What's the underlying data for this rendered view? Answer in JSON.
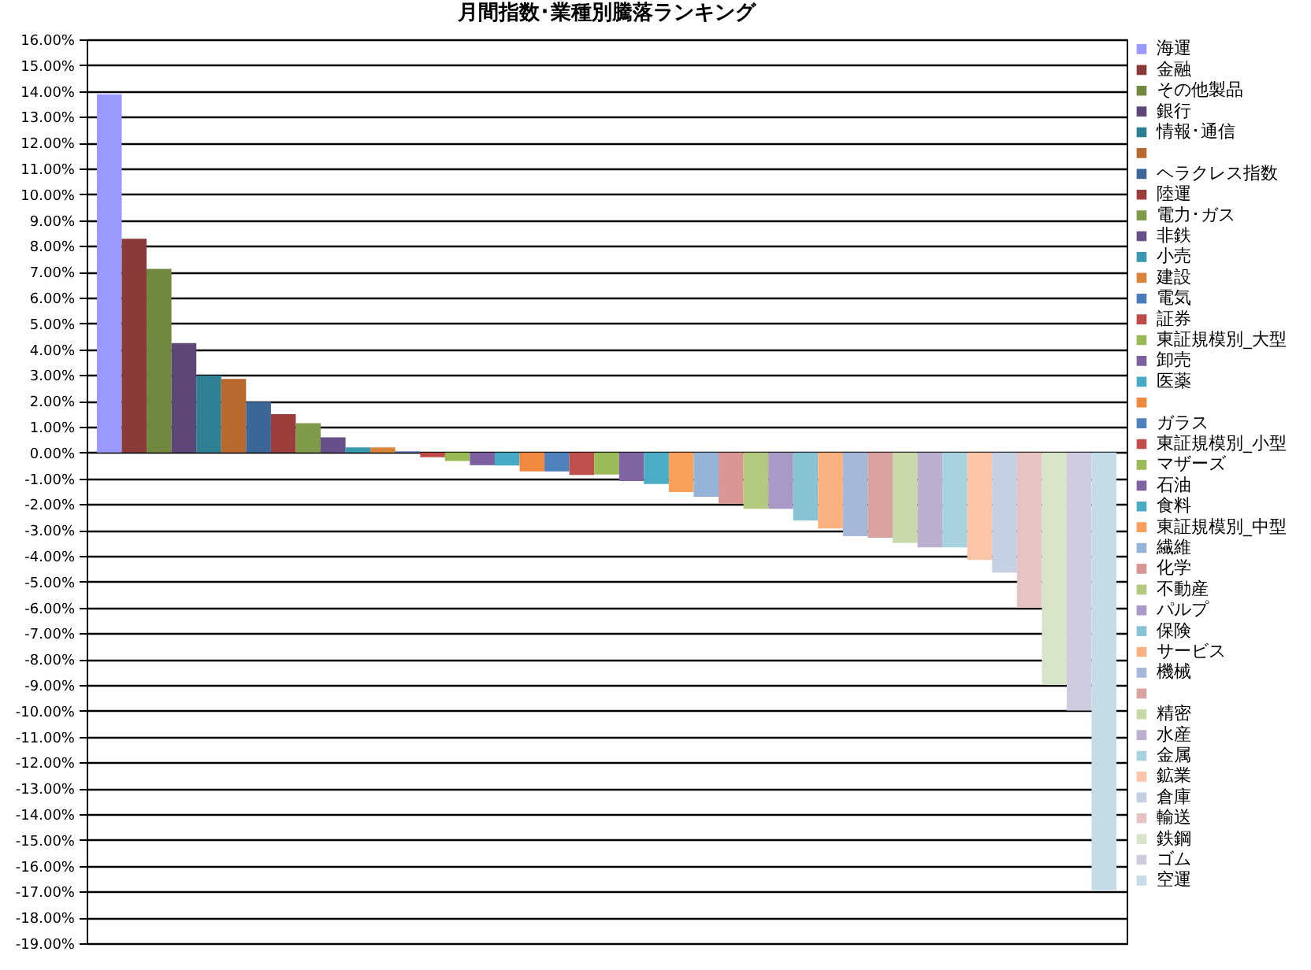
{
  "chart_data": {
    "type": "bar",
    "title": "月間指数･業種別騰落ランキング",
    "categories": [
      null
    ],
    "series": [
      {
        "name": "海運",
        "color": "#9999ff",
        "values": [
          13.87
        ]
      },
      {
        "name": "金融",
        "color": "#8b3a3a",
        "values": [
          8.28
        ]
      },
      {
        "name": "その他製品",
        "color": "#71893f",
        "values": [
          7.11
        ]
      },
      {
        "name": "銀行",
        "color": "#5c4776",
        "values": [
          4.24
        ]
      },
      {
        "name": "情報･通信",
        "color": "#2f7f93",
        "values": [
          2.98
        ]
      },
      {
        "name": null,
        "color": "#b8692e",
        "values": [
          2.85
        ]
      },
      {
        "name": "ヘラクレス指数",
        "color": "#3c6698",
        "values": [
          1.96
        ]
      },
      {
        "name": "陸運",
        "color": "#9b3d3b",
        "values": [
          1.49
        ]
      },
      {
        "name": "電力･ガス",
        "color": "#7f9a48",
        "values": [
          1.14
        ]
      },
      {
        "name": "非鉄",
        "color": "#67508a",
        "values": [
          0.59
        ]
      },
      {
        "name": "小売",
        "color": "#3a97b0",
        "values": [
          0.2
        ]
      },
      {
        "name": "建設",
        "color": "#d9843b",
        "values": [
          0.2
        ]
      },
      {
        "name": "電気",
        "color": "#4a7ebb",
        "values": [
          0.04
        ]
      },
      {
        "name": "証券",
        "color": "#be4b48",
        "values": [
          -0.18
        ]
      },
      {
        "name": "東証規模別_大型",
        "color": "#98b954",
        "values": [
          -0.33
        ]
      },
      {
        "name": "卸売",
        "color": "#7d60a0",
        "values": [
          -0.49
        ]
      },
      {
        "name": "医薬",
        "color": "#46aac5",
        "values": [
          -0.5
        ]
      },
      {
        "name": null,
        "color": "#f0883e",
        "values": [
          -0.73
        ]
      },
      {
        "name": "ガラス",
        "color": "#4f81bd",
        "values": [
          -0.73
        ]
      },
      {
        "name": "東証規模別_小型",
        "color": "#c0504d",
        "values": [
          -0.87
        ]
      },
      {
        "name": "マザーズ",
        "color": "#9bbb59",
        "values": [
          -0.85
        ]
      },
      {
        "name": "石油",
        "color": "#8064a2",
        "values": [
          -1.1
        ]
      },
      {
        "name": "食料",
        "color": "#4bacc6",
        "values": [
          -1.22
        ]
      },
      {
        "name": "東証規模別_中型",
        "color": "#f9a05a",
        "values": [
          -1.53
        ]
      },
      {
        "name": "繊維",
        "color": "#95b3d7",
        "values": [
          -1.71
        ]
      },
      {
        "name": "化学",
        "color": "#d99694",
        "values": [
          -1.98
        ]
      },
      {
        "name": "不動産",
        "color": "#b3c97f",
        "values": [
          -2.18
        ]
      },
      {
        "name": "パルプ",
        "color": "#a999c7",
        "values": [
          -2.18
        ]
      },
      {
        "name": "保険",
        "color": "#88c3d4",
        "values": [
          -2.63
        ]
      },
      {
        "name": "サービス",
        "color": "#fab07f",
        "values": [
          -2.94
        ]
      },
      {
        "name": "機械",
        "color": "#a6b8d9",
        "values": [
          -3.24
        ]
      },
      {
        "name": null,
        "color": "#daa3a2",
        "values": [
          -3.3
        ]
      },
      {
        "name": "精密",
        "color": "#c8d8a8",
        "values": [
          -3.5
        ]
      },
      {
        "name": "水産",
        "color": "#bcb0cf",
        "values": [
          -3.67
        ]
      },
      {
        "name": "金属",
        "color": "#a8d2de",
        "values": [
          -3.67
        ]
      },
      {
        "name": "鉱業",
        "color": "#fbc6a8",
        "values": [
          -4.16
        ]
      },
      {
        "name": "倉庫",
        "color": "#c5d0e2",
        "values": [
          -4.65
        ]
      },
      {
        "name": "輸送",
        "color": "#e6c4c4",
        "values": [
          -6.01
        ]
      },
      {
        "name": "鉄鋼",
        "color": "#d8e4c8",
        "values": [
          -8.99
        ]
      },
      {
        "name": "ゴム",
        "color": "#d0cce0",
        "values": [
          -9.99
        ]
      },
      {
        "name": "空運",
        "color": "#c4dce6",
        "values": [
          -16.94
        ]
      }
    ],
    "ylim": [
      -19,
      16
    ],
    "yticks": [
      {
        "value": -19,
        "label": "-19.00%"
      },
      {
        "value": -18,
        "label": "-18.00%"
      },
      {
        "value": -17,
        "label": "-17.00%"
      },
      {
        "value": -16,
        "label": "-16.00%"
      },
      {
        "value": -15,
        "label": "-15.00%"
      },
      {
        "value": -14,
        "label": "-14.00%"
      },
      {
        "value": -13,
        "label": "-13.00%"
      },
      {
        "value": -12,
        "label": "-12.00%"
      },
      {
        "value": -11,
        "label": "-11.00%"
      },
      {
        "value": -10,
        "label": "-10.00%"
      },
      {
        "value": -9,
        "label": "-9.00%"
      },
      {
        "value": -8,
        "label": "-8.00%"
      },
      {
        "value": -7,
        "label": "-7.00%"
      },
      {
        "value": -6,
        "label": "-6.00%"
      },
      {
        "value": -5,
        "label": "-5.00%"
      },
      {
        "value": -4,
        "label": "-4.00%"
      },
      {
        "value": -3,
        "label": "-3.00%"
      },
      {
        "value": -2,
        "label": "-2.00%"
      },
      {
        "value": -1,
        "label": "-1.00%"
      },
      {
        "value": 0,
        "label": "0.00%"
      },
      {
        "value": 1,
        "label": "1.00%"
      },
      {
        "value": 2,
        "label": "2.00%"
      },
      {
        "value": 3,
        "label": "3.00%"
      },
      {
        "value": 4,
        "label": "4.00%"
      },
      {
        "value": 5,
        "label": "5.00%"
      },
      {
        "value": 6,
        "label": "6.00%"
      },
      {
        "value": 7,
        "label": "7.00%"
      },
      {
        "value": 8,
        "label": "8.00%"
      },
      {
        "value": 9,
        "label": "9.00%"
      },
      {
        "value": 10,
        "label": "10.00%"
      },
      {
        "value": 11,
        "label": "11.00%"
      },
      {
        "value": 12,
        "label": "12.00%"
      },
      {
        "value": 13,
        "label": "13.00%"
      },
      {
        "value": 14,
        "label": "14.00%"
      },
      {
        "value": 15,
        "label": "15.00%"
      },
      {
        "value": 16,
        "label": "16.00%"
      }
    ],
    "grid": "y",
    "legend": "right",
    "tick_labels": "y"
  }
}
